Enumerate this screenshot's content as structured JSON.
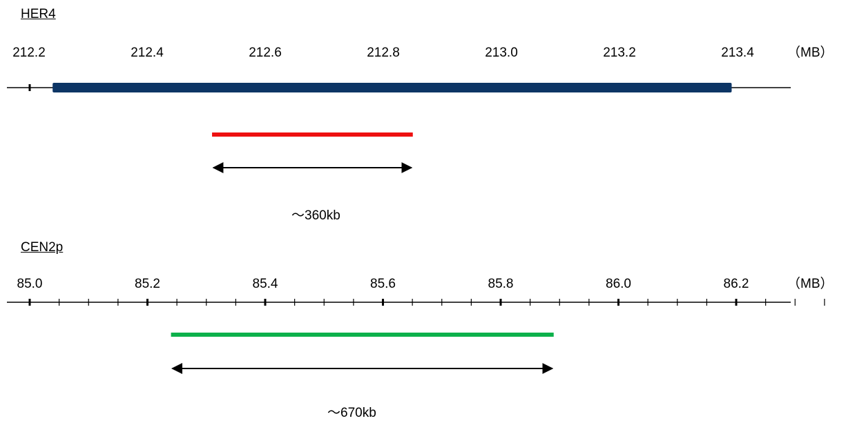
{
  "panels": [
    {
      "title": "HER4",
      "unit": "（MB）",
      "tick_labels": [
        "212.2",
        "212.4",
        "212.6",
        "212.8",
        "213.0",
        "213.2",
        "213.4"
      ],
      "gene_span_mb": [
        212.24,
        213.39
      ],
      "probe_span_mb": [
        212.51,
        212.85
      ],
      "probe_color": "#ee1111",
      "gene_color": "#0d3565",
      "size_label": "～360kb"
    },
    {
      "title": "CEN2p",
      "unit": "（MB）",
      "tick_labels": [
        "85.0",
        "85.2",
        "85.4",
        "85.6",
        "85.8",
        "86.0",
        "86.2"
      ],
      "probe_span_mb": [
        85.24,
        85.89
      ],
      "probe_color": "#0db14b",
      "size_label": "～670kb"
    }
  ]
}
